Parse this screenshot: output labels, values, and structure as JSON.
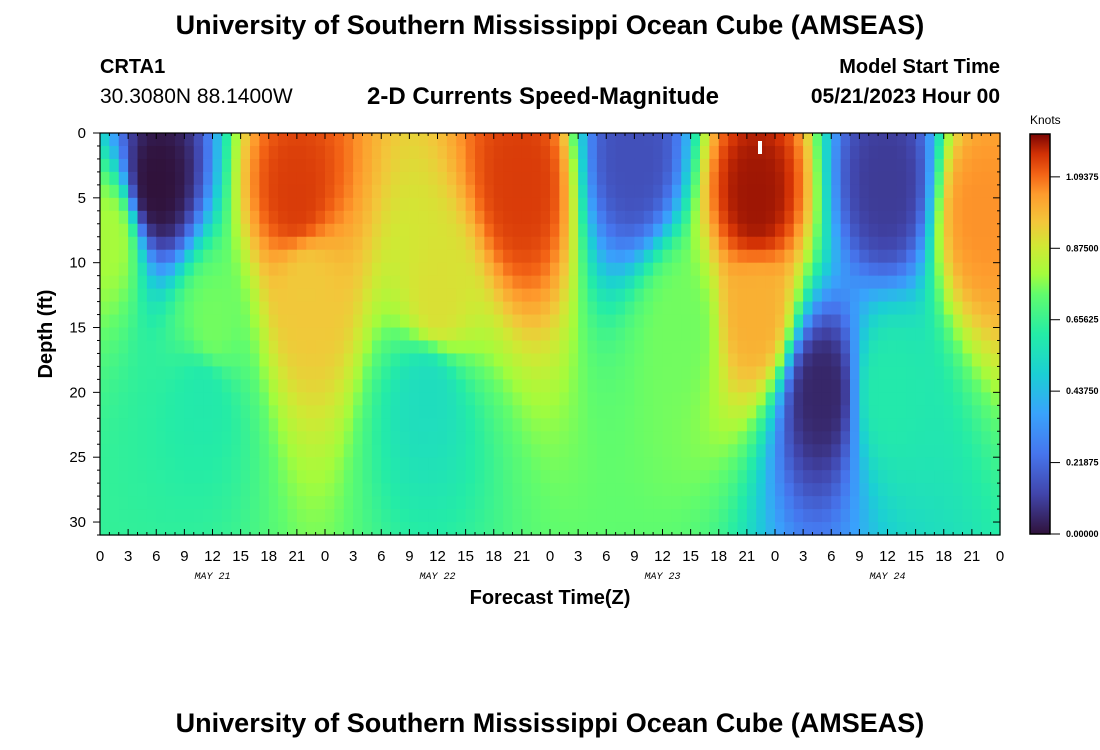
{
  "header": {
    "title": "University of Southern Mississippi Ocean Cube (AMSEAS)",
    "station_name": "CRTA1",
    "station_coords": "30.3080N  88.1400W",
    "subtitle": "2-D Currents Speed-Magnitude",
    "model_start_label": "Model Start Time",
    "model_start_value": "05/21/2023 Hour 00"
  },
  "footer": {
    "title": "University of Southern Mississippi Ocean Cube (AMSEAS)"
  },
  "chart_data": {
    "type": "heatmap",
    "title": "2-D Currents Speed-Magnitude",
    "xlabel": "Forecast Time(Z)",
    "ylabel": "Depth (ft)",
    "x_range_hours": [
      0,
      96
    ],
    "y_range_ft": [
      0,
      31
    ],
    "x_tick_labels": [
      "0",
      "3",
      "6",
      "9",
      "12",
      "15",
      "18",
      "21",
      "0",
      "3",
      "6",
      "9",
      "12",
      "15",
      "18",
      "21",
      "0",
      "3",
      "6",
      "9",
      "12",
      "15",
      "18",
      "21",
      "0",
      "3",
      "6",
      "9",
      "12",
      "15",
      "18",
      "21",
      "0"
    ],
    "y_ticks": [
      0,
      5,
      10,
      15,
      20,
      25,
      30
    ],
    "day_labels": [
      {
        "text": "MAY 21",
        "hour": 12
      },
      {
        "text": "MAY 22",
        "hour": 36
      },
      {
        "text": "MAY 23",
        "hour": 60
      },
      {
        "text": "MAY 24",
        "hour": 84
      }
    ],
    "colorbar": {
      "title": "Knots",
      "min": 0.0,
      "max": 1.225,
      "tick_values": [
        0.0,
        0.21875,
        0.4375,
        0.65625,
        0.875,
        1.09375
      ],
      "tick_labels": [
        "0.00000",
        "0.21875",
        "0.43750",
        "0.65625",
        "0.87500",
        "1.09375"
      ]
    },
    "features_knots": [
      {
        "t": 1,
        "d": 8,
        "v": 0.8
      },
      {
        "t": 6,
        "d": 4,
        "v": 0.0
      },
      {
        "t": 12,
        "d": 15,
        "v": 0.75
      },
      {
        "t": 11,
        "d": 20,
        "v": 0.6
      },
      {
        "t": 21,
        "d": 5,
        "v": 1.15
      },
      {
        "t": 22,
        "d": 12,
        "v": 0.95
      },
      {
        "t": 36,
        "d": 13,
        "v": 0.9
      },
      {
        "t": 35,
        "d": 20,
        "v": 0.55
      },
      {
        "t": 45,
        "d": 4,
        "v": 1.15
      },
      {
        "t": 57,
        "d": 2,
        "v": 0.15
      },
      {
        "t": 62,
        "d": 15,
        "v": 0.75
      },
      {
        "t": 70,
        "d": 5,
        "v": 1.2
      },
      {
        "t": 70,
        "d": 14,
        "v": 1.0
      },
      {
        "t": 77,
        "d": 20,
        "v": 0.05
      },
      {
        "t": 84,
        "d": 20,
        "v": 0.6
      },
      {
        "t": 84,
        "d": 4,
        "v": 0.1
      },
      {
        "t": 94,
        "d": 6,
        "v": 1.05
      }
    ]
  }
}
